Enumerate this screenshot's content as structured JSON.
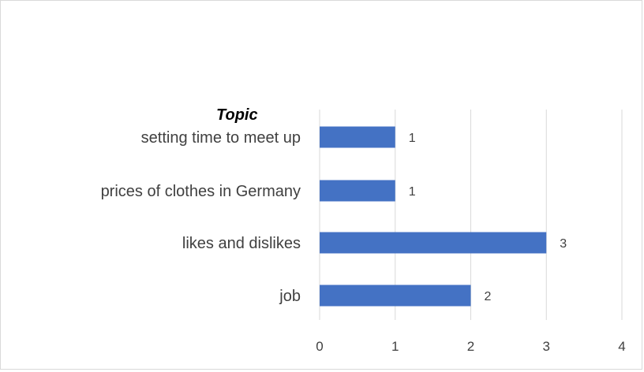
{
  "chart_data": {
    "type": "bar",
    "orientation": "horizontal",
    "title": "",
    "xlabel": "",
    "ylabel": "Topic",
    "categories": [
      "setting time to meet up",
      "prices of clothes in Germany",
      "likes and dislikes",
      "job"
    ],
    "values": [
      1,
      1,
      3,
      2
    ],
    "xlim": [
      0,
      4
    ],
    "xticks": [
      "0",
      "1",
      "2",
      "3",
      "4"
    ],
    "grid": true,
    "legend": "none",
    "data_labels": true,
    "colors": {
      "bar": "#4472C4",
      "grid": "#d9d9d9",
      "text": "#404040"
    }
  }
}
